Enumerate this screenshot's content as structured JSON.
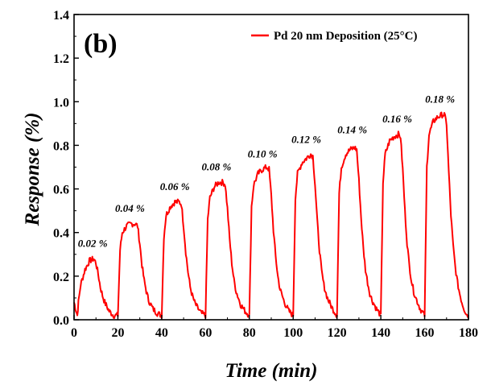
{
  "chart_data": {
    "type": "line",
    "panel_label": "(b)",
    "xlabel": "Time (min)",
    "ylabel": "Response (%)",
    "xlim": [
      0,
      180
    ],
    "ylim": [
      0,
      1.4
    ],
    "xticks": [
      0,
      20,
      40,
      60,
      80,
      100,
      120,
      140,
      160,
      180
    ],
    "yticks": [
      0.0,
      0.2,
      0.4,
      0.6,
      0.8,
      1.0,
      1.2,
      1.4
    ],
    "xtick_labels": [
      "0",
      "20",
      "40",
      "60",
      "80",
      "100",
      "120",
      "140",
      "160",
      "180"
    ],
    "ytick_labels": [
      "0.0",
      "0.2",
      "0.4",
      "0.6",
      "0.8",
      "1.0",
      "1.2",
      "1.4"
    ],
    "grid": false,
    "legend_position": "top-right",
    "series": [
      {
        "name": "Pd 20 nm Deposition (25°C)",
        "color": "#ff0000",
        "x": [
          0,
          1.5,
          2,
          3,
          5,
          7,
          9,
          10,
          11,
          12,
          13,
          14,
          15,
          16,
          17,
          18,
          19,
          20,
          21,
          22,
          24,
          26,
          28,
          29,
          30,
          31,
          32,
          33,
          34,
          35,
          36,
          38,
          40,
          41,
          42,
          44,
          46,
          48,
          49,
          50,
          51,
          52,
          53,
          54,
          55,
          56,
          58,
          60,
          61,
          62,
          64,
          66,
          68,
          69,
          70,
          71,
          72,
          73,
          74,
          75,
          76,
          78,
          80,
          81,
          82,
          84,
          86,
          88,
          89,
          90,
          91,
          92,
          93,
          94,
          95,
          96,
          98,
          100,
          101,
          102,
          104,
          106,
          108,
          109,
          110,
          111,
          112,
          113,
          114,
          115,
          116,
          118,
          120,
          121,
          122,
          124,
          126,
          128,
          129,
          130,
          131,
          132,
          133,
          134,
          135,
          136,
          138,
          140,
          141,
          142,
          144,
          146,
          148,
          149,
          150,
          151,
          152,
          153,
          154,
          155,
          156,
          158,
          160,
          161,
          162,
          164,
          166,
          168,
          169,
          170,
          171,
          172,
          173,
          174,
          175,
          176,
          177,
          178,
          179,
          180
        ],
        "y": [
          0.08,
          0.02,
          0.08,
          0.16,
          0.23,
          0.27,
          0.28,
          0.26,
          0.21,
          0.15,
          0.11,
          0.08,
          0.06,
          0.04,
          0.03,
          0.02,
          0.02,
          0.02,
          0.32,
          0.4,
          0.43,
          0.44,
          0.44,
          0.43,
          0.35,
          0.25,
          0.18,
          0.13,
          0.09,
          0.07,
          0.05,
          0.03,
          0.02,
          0.38,
          0.48,
          0.52,
          0.54,
          0.54,
          0.53,
          0.43,
          0.31,
          0.22,
          0.15,
          0.11,
          0.08,
          0.06,
          0.03,
          0.02,
          0.46,
          0.56,
          0.61,
          0.63,
          0.63,
          0.62,
          0.51,
          0.37,
          0.26,
          0.18,
          0.13,
          0.1,
          0.07,
          0.04,
          0.02,
          0.52,
          0.62,
          0.67,
          0.69,
          0.7,
          0.69,
          0.57,
          0.41,
          0.29,
          0.2,
          0.14,
          0.11,
          0.08,
          0.04,
          0.02,
          0.56,
          0.67,
          0.72,
          0.74,
          0.76,
          0.75,
          0.62,
          0.45,
          0.32,
          0.22,
          0.16,
          0.12,
          0.09,
          0.05,
          0.02,
          0.58,
          0.7,
          0.76,
          0.78,
          0.79,
          0.78,
          0.64,
          0.47,
          0.33,
          0.23,
          0.17,
          0.12,
          0.09,
          0.05,
          0.02,
          0.63,
          0.76,
          0.82,
          0.84,
          0.85,
          0.84,
          0.69,
          0.5,
          0.35,
          0.25,
          0.18,
          0.13,
          0.1,
          0.05,
          0.02,
          0.7,
          0.85,
          0.91,
          0.93,
          0.94,
          0.94,
          0.9,
          0.68,
          0.48,
          0.34,
          0.24,
          0.17,
          0.12,
          0.08,
          0.05,
          0.03,
          0.01
        ]
      }
    ],
    "annotations": [
      {
        "text": "0.02 %",
        "x": 8.5,
        "y": 0.335
      },
      {
        "text": "0.04 %",
        "x": 25.5,
        "y": 0.495
      },
      {
        "text": "0.06 %",
        "x": 46,
        "y": 0.595
      },
      {
        "text": "0.08 %",
        "x": 65,
        "y": 0.685
      },
      {
        "text": "0.10 %",
        "x": 86,
        "y": 0.745
      },
      {
        "text": "0.12 %",
        "x": 106,
        "y": 0.81
      },
      {
        "text": "0.14 %",
        "x": 127,
        "y": 0.855
      },
      {
        "text": "0.16 %",
        "x": 147.5,
        "y": 0.905
      },
      {
        "text": "0.18 %",
        "x": 167,
        "y": 0.995
      }
    ]
  }
}
